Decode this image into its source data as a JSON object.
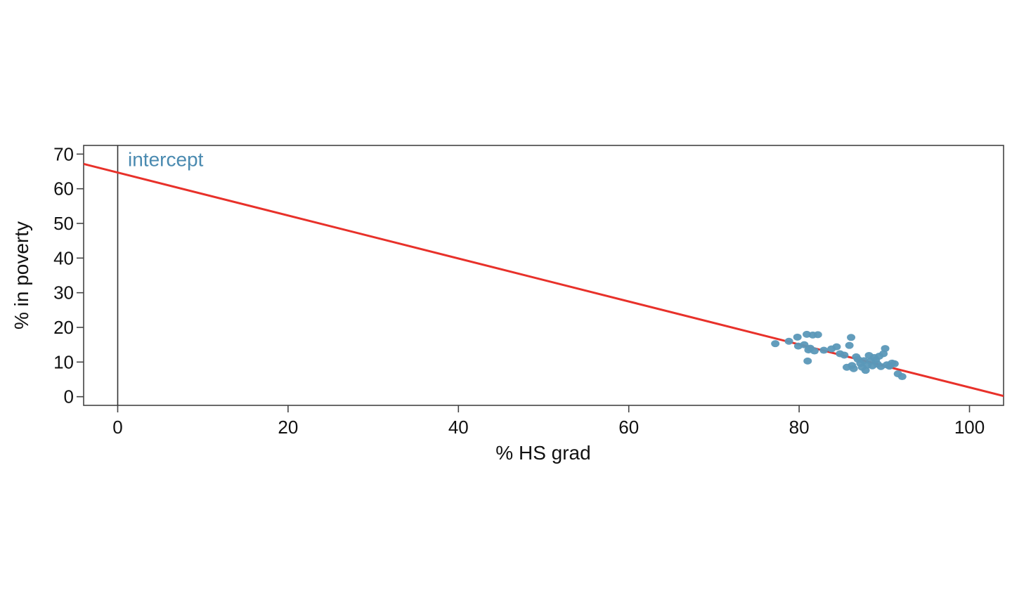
{
  "chart_data": {
    "type": "scatter",
    "xlabel": "% HS grad",
    "ylabel": "% in poverty",
    "xlim": [
      -4,
      104
    ],
    "ylim": [
      -2.5,
      72.5
    ],
    "x_ticks": [
      0,
      20,
      40,
      60,
      80,
      100
    ],
    "y_ticks": [
      0,
      10,
      20,
      30,
      40,
      50,
      60,
      70
    ],
    "grid": false,
    "annotation": {
      "text": "intercept",
      "x": 1.2,
      "y": 66.5,
      "color": "#4a8ab0"
    },
    "vertical_line": {
      "x": 0,
      "color": "#333333"
    },
    "regression_line": {
      "intercept": 64.68,
      "slope": -0.62,
      "color": "#e8312a"
    },
    "point_color": "#5b98b8",
    "points": [
      {
        "x": 77.2,
        "y": 15.3
      },
      {
        "x": 78.8,
        "y": 16.0
      },
      {
        "x": 79.8,
        "y": 17.2
      },
      {
        "x": 79.9,
        "y": 14.6
      },
      {
        "x": 80.6,
        "y": 15.0
      },
      {
        "x": 80.9,
        "y": 18.0
      },
      {
        "x": 81.1,
        "y": 13.5
      },
      {
        "x": 81.0,
        "y": 10.3
      },
      {
        "x": 81.3,
        "y": 14.0
      },
      {
        "x": 81.6,
        "y": 17.8
      },
      {
        "x": 81.8,
        "y": 13.2
      },
      {
        "x": 82.2,
        "y": 17.9
      },
      {
        "x": 82.9,
        "y": 13.4
      },
      {
        "x": 83.8,
        "y": 13.8
      },
      {
        "x": 84.4,
        "y": 14.4
      },
      {
        "x": 84.8,
        "y": 12.4
      },
      {
        "x": 85.3,
        "y": 12.0
      },
      {
        "x": 85.6,
        "y": 8.5
      },
      {
        "x": 85.9,
        "y": 14.8
      },
      {
        "x": 86.1,
        "y": 17.1
      },
      {
        "x": 86.2,
        "y": 9.0
      },
      {
        "x": 86.4,
        "y": 8.1
      },
      {
        "x": 86.7,
        "y": 11.5
      },
      {
        "x": 86.9,
        "y": 10.8
      },
      {
        "x": 87.2,
        "y": 9.6
      },
      {
        "x": 87.4,
        "y": 8.5
      },
      {
        "x": 87.6,
        "y": 10.4
      },
      {
        "x": 87.8,
        "y": 7.6
      },
      {
        "x": 88.0,
        "y": 9.1
      },
      {
        "x": 88.2,
        "y": 11.9
      },
      {
        "x": 88.4,
        "y": 10.2
      },
      {
        "x": 88.6,
        "y": 8.9
      },
      {
        "x": 88.8,
        "y": 11.3
      },
      {
        "x": 89.0,
        "y": 10.6
      },
      {
        "x": 89.2,
        "y": 9.4
      },
      {
        "x": 89.4,
        "y": 11.7
      },
      {
        "x": 89.6,
        "y": 8.7
      },
      {
        "x": 89.9,
        "y": 12.4
      },
      {
        "x": 90.1,
        "y": 13.9
      },
      {
        "x": 90.3,
        "y": 9.2
      },
      {
        "x": 90.6,
        "y": 8.8
      },
      {
        "x": 90.9,
        "y": 9.7
      },
      {
        "x": 91.2,
        "y": 9.5
      },
      {
        "x": 91.6,
        "y": 6.6
      },
      {
        "x": 92.1,
        "y": 5.8
      }
    ]
  }
}
